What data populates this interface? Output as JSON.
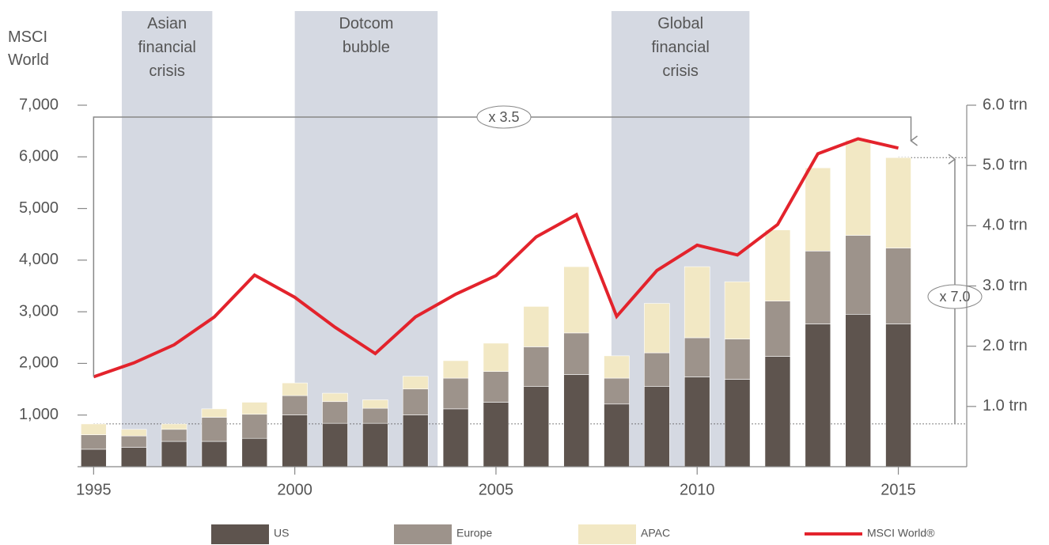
{
  "chart_data": {
    "type": "bar",
    "stacked": true,
    "y_label": "MSCI World",
    "x": [
      1995,
      1996,
      1997,
      1998,
      1999,
      2000,
      2001,
      2002,
      2003,
      2004,
      2005,
      2006,
      2007,
      2008,
      2009,
      2010,
      2011,
      2012,
      2013,
      2014,
      2015
    ],
    "xlim": [
      1994.6,
      2016.7
    ],
    "xticks": [
      1995,
      2000,
      2005,
      2010,
      2015
    ],
    "ylim": [
      0,
      7000
    ],
    "yticks": [
      {
        "value": 1000,
        "label": "1,000"
      },
      {
        "value": 2000,
        "label": "2,000"
      },
      {
        "value": 3000,
        "label": "3,000"
      },
      {
        "value": 4000,
        "label": "4,000"
      },
      {
        "value": 5000,
        "label": "5,000"
      },
      {
        "value": 6000,
        "label": "6,000"
      },
      {
        "value": 7000,
        "label": "7,000"
      }
    ],
    "y2lim": [
      0,
      6
    ],
    "y2ticks": [
      {
        "value": 1,
        "label": "1.0 trn"
      },
      {
        "value": 2,
        "label": "2.0 trn"
      },
      {
        "value": 3,
        "label": "3.0 trn"
      },
      {
        "value": 4,
        "label": "4.0 trn"
      },
      {
        "value": 5,
        "label": "5.0 trn"
      },
      {
        "value": 6,
        "label": "6.0 trn"
      }
    ],
    "series": [
      {
        "name": "US",
        "color": "#5e544e",
        "axis": "y2",
        "values": [
          0.29,
          0.32,
          0.42,
          0.42,
          0.47,
          0.86,
          0.72,
          0.72,
          0.86,
          0.96,
          1.07,
          1.33,
          1.53,
          1.04,
          1.33,
          1.49,
          1.45,
          1.83,
          2.37,
          2.53,
          2.37
        ]
      },
      {
        "name": "Europe",
        "color": "#9d938b",
        "axis": "y2",
        "values": [
          0.24,
          0.19,
          0.2,
          0.4,
          0.4,
          0.32,
          0.36,
          0.25,
          0.43,
          0.51,
          0.51,
          0.66,
          0.69,
          0.43,
          0.56,
          0.65,
          0.67,
          0.92,
          1.21,
          1.31,
          1.26
        ]
      },
      {
        "name": "APAC",
        "color": "#f2e8c4",
        "axis": "y2",
        "values": [
          0.18,
          0.11,
          0.09,
          0.14,
          0.2,
          0.21,
          0.14,
          0.14,
          0.21,
          0.29,
          0.47,
          0.67,
          1.1,
          0.37,
          0.82,
          1.18,
          0.95,
          1.18,
          1.38,
          1.58,
          1.5
        ]
      },
      {
        "name": "MSCI World®",
        "type": "line",
        "color": "#e3232c",
        "values": [
          1740,
          2010,
          2360,
          2900,
          3710,
          3280,
          2700,
          2190,
          2900,
          3340,
          3700,
          4450,
          4880,
          2910,
          3800,
          4290,
          4100,
          4690,
          6060,
          6350,
          6170
        ]
      }
    ],
    "shaded_regions": [
      {
        "label": "Asian financial crisis",
        "x": [
          1995.7,
          1997.95
        ],
        "color": "#d5d9e2"
      },
      {
        "label": "Dotcom bubble",
        "x": [
          2000.0,
          2003.55
        ],
        "color": "#d5d9e2"
      },
      {
        "label": "Global financial crisis",
        "x": [
          2007.87,
          2011.3
        ],
        "color": "#d5d9e2"
      }
    ],
    "annotations": [
      "x 3.5",
      "x 7.0"
    ]
  }
}
